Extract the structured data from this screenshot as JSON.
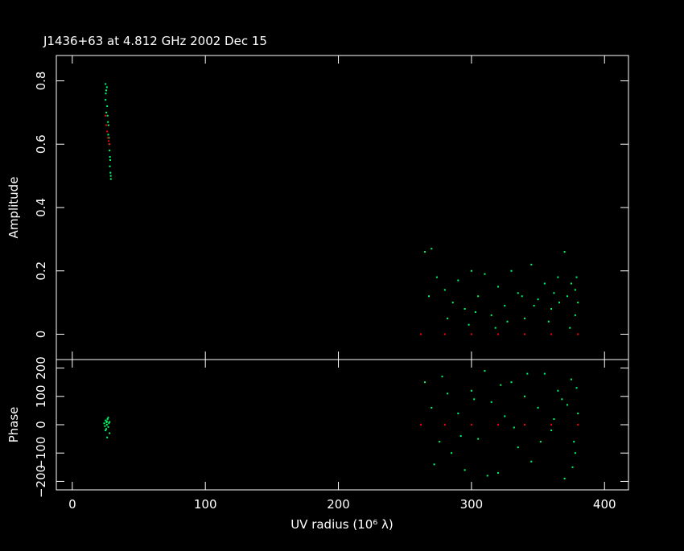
{
  "title": "J1436+63 at 4.812 GHz 2002 Dec 15",
  "colors": {
    "background": "#000000",
    "axes": "#ffffff",
    "data_points": "#00ff66",
    "model_points": "#ff0000"
  },
  "chart_data": [
    {
      "type": "scatter",
      "panel": "amplitude",
      "title": "J1436+63 at 4.812 GHz 2002 Dec 15",
      "xlabel": "",
      "ylabel": "Amplitude",
      "xlim": [
        -12,
        418
      ],
      "ylim": [
        -0.08,
        0.88
      ],
      "xticks": [
        0,
        100,
        200,
        300,
        400
      ],
      "yticks": [
        0,
        0.2,
        0.4,
        0.6,
        0.8
      ],
      "ytick_labels": [
        "0",
        "0.2",
        "0.4",
        "0.6",
        "0.8"
      ],
      "series": [
        {
          "role": "observed",
          "points": [
            [
              25,
              0.79
            ],
            [
              25.5,
              0.77
            ],
            [
              26,
              0.78
            ],
            [
              25,
              0.74
            ],
            [
              26.2,
              0.72
            ],
            [
              25.6,
              0.7
            ],
            [
              26.5,
              0.69
            ],
            [
              26.8,
              0.67
            ],
            [
              27.2,
              0.66
            ],
            [
              27,
              0.63
            ],
            [
              27.5,
              0.62
            ],
            [
              27.8,
              0.6
            ],
            [
              28,
              0.58
            ],
            [
              28.3,
              0.56
            ],
            [
              28.5,
              0.55
            ],
            [
              28.2,
              0.53
            ],
            [
              28.7,
              0.51
            ],
            [
              28.9,
              0.5
            ],
            [
              29,
              0.49
            ],
            [
              25.2,
              0.76
            ],
            [
              265,
              0.26
            ],
            [
              270,
              0.27
            ],
            [
              268,
              0.12
            ],
            [
              274,
              0.18
            ],
            [
              280,
              0.14
            ],
            [
              286,
              0.1
            ],
            [
              290,
              0.17
            ],
            [
              295,
              0.08
            ],
            [
              300,
              0.2
            ],
            [
              305,
              0.12
            ],
            [
              310,
              0.19
            ],
            [
              315,
              0.06
            ],
            [
              320,
              0.15
            ],
            [
              325,
              0.09
            ],
            [
              330,
              0.2
            ],
            [
              335,
              0.13
            ],
            [
              340,
              0.05
            ],
            [
              345,
              0.22
            ],
            [
              350,
              0.11
            ],
            [
              355,
              0.16
            ],
            [
              360,
              0.08
            ],
            [
              365,
              0.18
            ],
            [
              370,
              0.26
            ],
            [
              372,
              0.12
            ],
            [
              375,
              0.16
            ],
            [
              378,
              0.06
            ],
            [
              380,
              0.1
            ],
            [
              378,
              0.14
            ],
            [
              282,
              0.05
            ],
            [
              298,
              0.03
            ],
            [
              318,
              0.02
            ],
            [
              338,
              0.12
            ],
            [
              358,
              0.04
            ],
            [
              366,
              0.1
            ],
            [
              374,
              0.02
            ],
            [
              379,
              0.18
            ],
            [
              303,
              0.07
            ],
            [
              327,
              0.04
            ],
            [
              347,
              0.09
            ],
            [
              362,
              0.13
            ]
          ]
        },
        {
          "role": "model",
          "points": [
            [
              25,
              0.69
            ],
            [
              25.6,
              0.66
            ],
            [
              26.2,
              0.64
            ],
            [
              26.8,
              0.62
            ],
            [
              27.4,
              0.61
            ],
            [
              28,
              0.6
            ],
            [
              262,
              0.0
            ],
            [
              280,
              0.0
            ],
            [
              300,
              0.0
            ],
            [
              320,
              0.0
            ],
            [
              340,
              0.0
            ],
            [
              360,
              0.0
            ],
            [
              380,
              0.0
            ]
          ]
        }
      ]
    },
    {
      "type": "scatter",
      "panel": "phase",
      "xlabel": "UV radius  (10⁶ λ)",
      "ylabel": "Phase",
      "xlim": [
        -12,
        418
      ],
      "ylim": [
        -230,
        230
      ],
      "xticks": [
        0,
        100,
        200,
        300,
        400
      ],
      "yticks": [
        -200,
        -100,
        0,
        100,
        200
      ],
      "ytick_labels": [
        "−200",
        "−100",
        "0",
        "100",
        "200"
      ],
      "series": [
        {
          "role": "observed",
          "points": [
            [
              24,
              5
            ],
            [
              25,
              15
            ],
            [
              26,
              0
            ],
            [
              27,
              -8
            ],
            [
              28,
              10
            ],
            [
              25.5,
              -15
            ],
            [
              26.5,
              20
            ],
            [
              24.5,
              -5
            ],
            [
              27.5,
              5
            ],
            [
              26,
              12
            ],
            [
              25,
              -20
            ],
            [
              28,
              -30
            ],
            [
              27,
              25
            ],
            [
              26.2,
              -45
            ],
            [
              25.8,
              8
            ],
            [
              265,
              150
            ],
            [
              270,
              60
            ],
            [
              272,
              -140
            ],
            [
              278,
              170
            ],
            [
              285,
              -100
            ],
            [
              290,
              40
            ],
            [
              295,
              -160
            ],
            [
              300,
              120
            ],
            [
              305,
              -50
            ],
            [
              310,
              190
            ],
            [
              315,
              80
            ],
            [
              320,
              -170
            ],
            [
              325,
              30
            ],
            [
              330,
              150
            ],
            [
              335,
              -80
            ],
            [
              340,
              100
            ],
            [
              345,
              -130
            ],
            [
              350,
              60
            ],
            [
              355,
              180
            ],
            [
              360,
              -20
            ],
            [
              365,
              120
            ],
            [
              370,
              -190
            ],
            [
              372,
              70
            ],
            [
              375,
              160
            ],
            [
              378,
              -100
            ],
            [
              380,
              40
            ],
            [
              376,
              -150
            ],
            [
              368,
              90
            ],
            [
              362,
              20
            ],
            [
              352,
              -60
            ],
            [
              342,
              180
            ],
            [
              332,
              -10
            ],
            [
              322,
              140
            ],
            [
              312,
              -180
            ],
            [
              302,
              90
            ],
            [
              292,
              -40
            ],
            [
              282,
              110
            ],
            [
              276,
              -60
            ],
            [
              379,
              130
            ],
            [
              377,
              -60
            ]
          ]
        },
        {
          "role": "model",
          "points": [
            [
              262,
              0
            ],
            [
              280,
              0
            ],
            [
              300,
              0
            ],
            [
              320,
              0
            ],
            [
              340,
              0
            ],
            [
              360,
              0
            ],
            [
              380,
              0
            ]
          ]
        }
      ]
    }
  ]
}
